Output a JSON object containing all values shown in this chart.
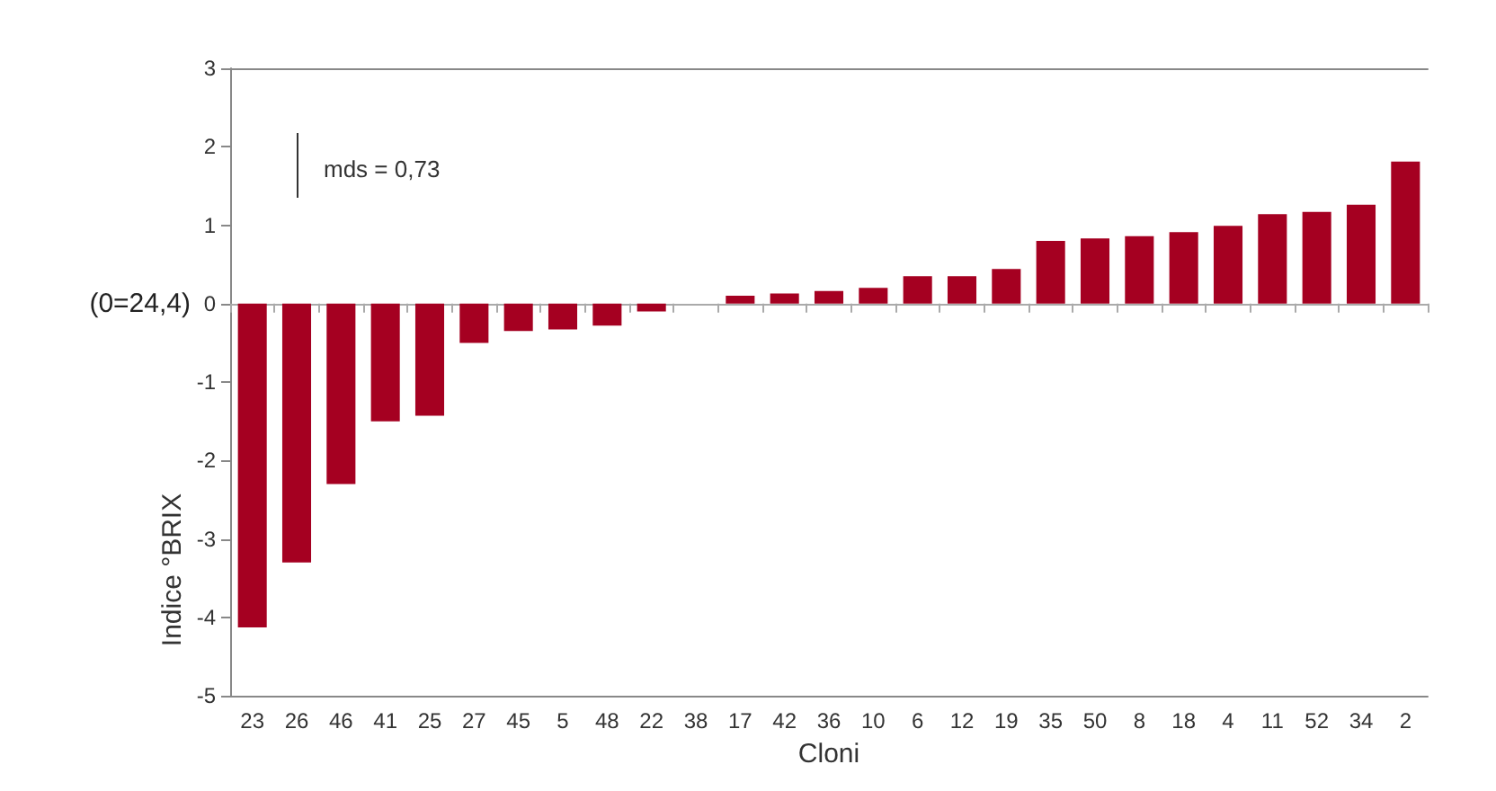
{
  "chart_data": {
    "type": "bar",
    "xlabel": "Cloni",
    "ylabel": "Indice °BRIX",
    "categories": [
      "23",
      "26",
      "46",
      "41",
      "25",
      "27",
      "45",
      "5",
      "48",
      "22",
      "38",
      "17",
      "42",
      "36",
      "10",
      "6",
      "12",
      "19",
      "35",
      "50",
      "8",
      "18",
      "4",
      "11",
      "52",
      "34",
      "2"
    ],
    "values": [
      -4.13,
      -3.3,
      -2.3,
      -1.5,
      -1.43,
      -0.5,
      -0.35,
      -0.33,
      -0.28,
      -0.1,
      0,
      0.1,
      0.13,
      0.16,
      0.2,
      0.35,
      0.35,
      0.44,
      0.8,
      0.83,
      0.86,
      0.91,
      0.99,
      1.14,
      1.17,
      1.26,
      1.81
    ],
    "color": "#a50021",
    "ylim": [
      -5,
      3
    ],
    "yticks": [
      -5,
      -4,
      -3,
      -2,
      -1,
      0,
      1,
      2,
      3
    ],
    "annotations": [
      "mds = 0,73",
      "(0=24,4)"
    ]
  }
}
